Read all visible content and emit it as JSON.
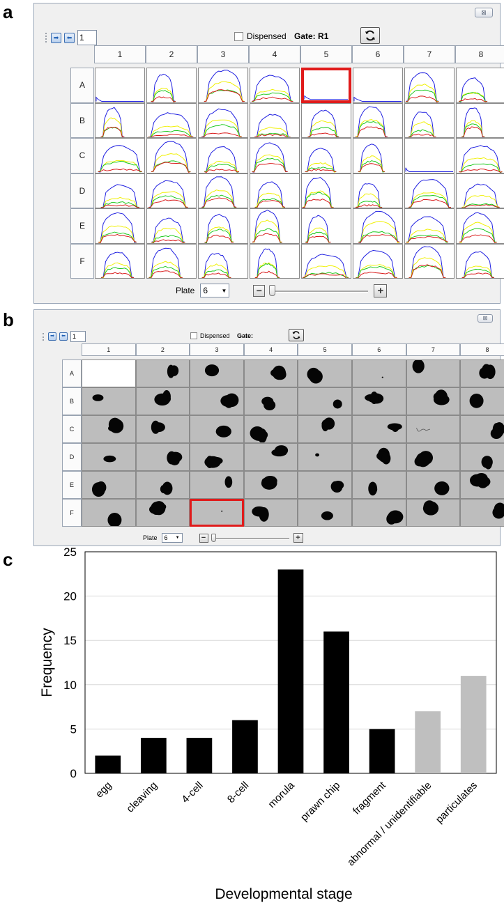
{
  "panels": {
    "a": "a",
    "b": "b",
    "c": "c"
  },
  "close_label": "⊠",
  "panel_a": {
    "page_value": "1",
    "dispensed_label": "Dispensed",
    "gate_label": "Gate:",
    "gate_value": "R1",
    "columns": [
      "1",
      "2",
      "3",
      "4",
      "5",
      "6",
      "7",
      "8"
    ],
    "rows": [
      "A",
      "B",
      "C",
      "D",
      "E",
      "F"
    ],
    "highlight": "A5",
    "plate_label": "Plate",
    "plate_value": "6",
    "trace_colors": {
      "blue": "#1b1be0",
      "yellow": "#f0f000",
      "green": "#18c818",
      "red": "#d81818"
    },
    "empty_cells": [
      "A1",
      "A5",
      "A6",
      "C7"
    ]
  },
  "panel_b": {
    "page_value": "1",
    "dispensed_label": "Dispensed",
    "gate_label": "Gate:",
    "columns": [
      "1",
      "2",
      "3",
      "4",
      "5",
      "6",
      "7",
      "8"
    ],
    "rows": [
      "A",
      "B",
      "C",
      "D",
      "E",
      "F"
    ],
    "highlight": "F3",
    "plate_label": "Plate",
    "plate_value": "6",
    "blank_cells": [
      "A1"
    ]
  },
  "chart_data": {
    "type": "bar",
    "categories": [
      "egg",
      "cleaving",
      "4-cell",
      "8-cell",
      "morula",
      "prawn chip",
      "fragment",
      "abnormal / unidentifiable",
      "particulates"
    ],
    "values": [
      2,
      4,
      4,
      6,
      23,
      16,
      5,
      7,
      11
    ],
    "bar_colors": [
      "#000000",
      "#000000",
      "#000000",
      "#000000",
      "#000000",
      "#000000",
      "#000000",
      "#bfbfbf",
      "#bfbfbf"
    ],
    "xlabel": "Developmental stage",
    "ylabel": "Frequency",
    "ylim": [
      0,
      25
    ],
    "yticks": [
      0,
      5,
      10,
      15,
      20,
      25
    ],
    "grid": true
  }
}
